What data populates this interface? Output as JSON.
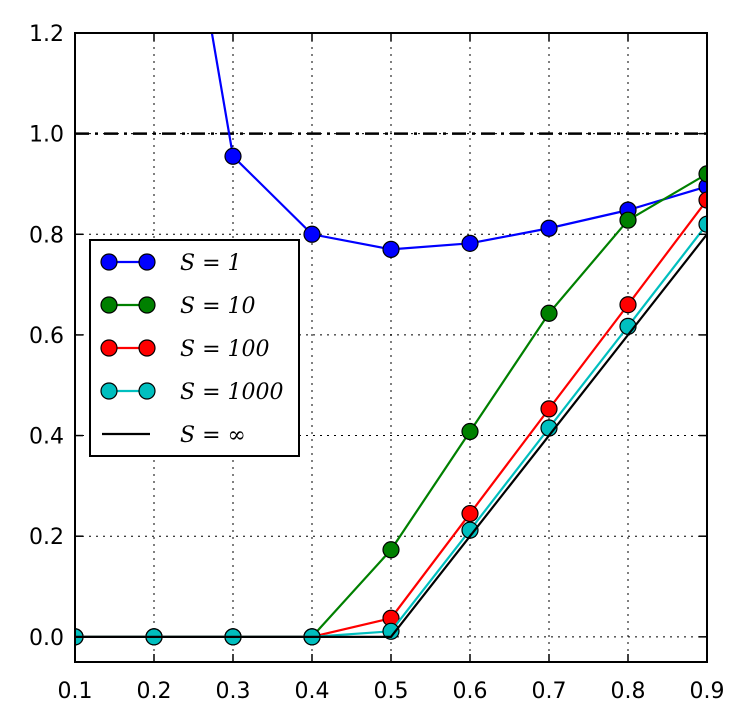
{
  "chart_data": {
    "type": "line",
    "title": "",
    "xlabel": "",
    "ylabel": "",
    "xlim": [
      0.1,
      0.9
    ],
    "ylim": [
      -0.05,
      1.2
    ],
    "xticks": [
      "0.1",
      "0.2",
      "0.3",
      "0.4",
      "0.5",
      "0.6",
      "0.7",
      "0.8",
      "0.9"
    ],
    "yticks": [
      "0.0",
      "0.2",
      "0.4",
      "0.6",
      "0.8",
      "1.0",
      "1.2"
    ],
    "grid": true,
    "legend_position": "center-left",
    "reference_line": {
      "y": 1.0,
      "style": "dash-dot",
      "color": "#000000"
    },
    "series": [
      {
        "name": "S = 1",
        "color": "#0000ff",
        "markers": true,
        "x": [
          0.27,
          0.3,
          0.4,
          0.5,
          0.6,
          0.7,
          0.8,
          0.9
        ],
        "y": [
          1.23,
          0.955,
          0.8,
          0.77,
          0.782,
          0.812,
          0.848,
          0.895
        ]
      },
      {
        "name": "S = 10",
        "color": "#008000",
        "markers": true,
        "x": [
          0.1,
          0.2,
          0.3,
          0.4,
          0.5,
          0.6,
          0.7,
          0.8,
          0.9
        ],
        "y": [
          0.0,
          0.0,
          0.0,
          0.0,
          0.173,
          0.408,
          0.643,
          0.828,
          0.92
        ]
      },
      {
        "name": "S = 100",
        "color": "#ff0000",
        "markers": true,
        "x": [
          0.1,
          0.2,
          0.3,
          0.4,
          0.5,
          0.6,
          0.7,
          0.8,
          0.9
        ],
        "y": [
          0.0,
          0.0,
          0.0,
          0.0,
          0.037,
          0.245,
          0.453,
          0.66,
          0.868
        ]
      },
      {
        "name": "S = 1000",
        "color": "#00bfbf",
        "markers": true,
        "x": [
          0.1,
          0.2,
          0.3,
          0.4,
          0.5,
          0.6,
          0.7,
          0.8,
          0.9
        ],
        "y": [
          0.0,
          0.0,
          0.0,
          0.0,
          0.011,
          0.212,
          0.415,
          0.617,
          0.82
        ]
      },
      {
        "name": "S = ∞",
        "color": "#000000",
        "markers": false,
        "x": [
          0.1,
          0.5,
          0.9
        ],
        "y": [
          0.0,
          0.0,
          0.8
        ]
      }
    ]
  }
}
